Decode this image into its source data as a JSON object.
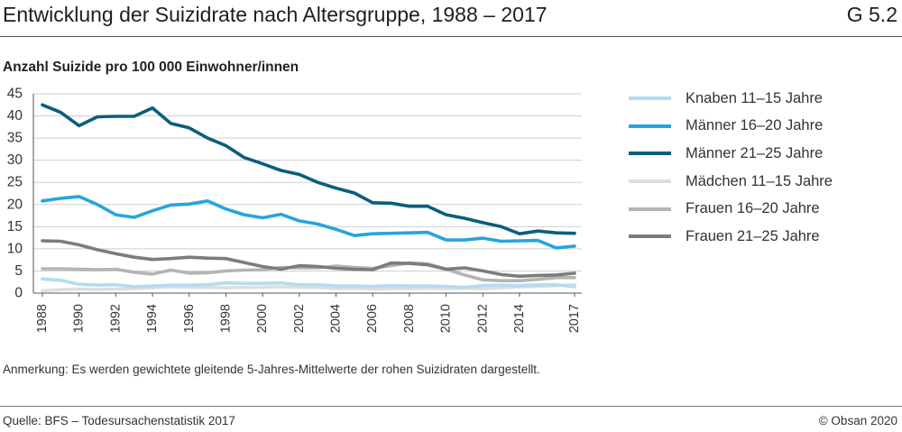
{
  "header": {
    "figure_id": "G 5.2"
  },
  "chart_data": {
    "type": "line",
    "title": "Entwicklung der Suizidrate nach Altersgruppe, 1988 – 2017",
    "ylabel": "Anzahl Suizide pro 100 000 Einwohner/innen",
    "ylim": [
      0,
      45
    ],
    "y_tick_labels": [
      "0",
      "5",
      "10",
      "15",
      "20",
      "25",
      "30",
      "35",
      "40",
      "45"
    ],
    "x": [
      1988,
      1989,
      1990,
      1991,
      1992,
      1993,
      1994,
      1995,
      1996,
      1997,
      1998,
      1999,
      2000,
      2001,
      2002,
      2003,
      2004,
      2005,
      2006,
      2007,
      2008,
      2009,
      2010,
      2011,
      2012,
      2013,
      2014,
      2015,
      2016,
      2017
    ],
    "x_tick_labels": [
      "1988",
      "1990",
      "1992",
      "1994",
      "1996",
      "1998",
      "2000",
      "2002",
      "2004",
      "2006",
      "2008",
      "2010",
      "2012",
      "2014",
      "2017"
    ],
    "grid": true,
    "legend_position": "right",
    "series": [
      {
        "name": "Knaben 11–15 Jahre",
        "color": "#b5dbf0",
        "values": [
          3.2,
          2.9,
          2.0,
          1.8,
          1.9,
          1.4,
          1.6,
          1.8,
          1.8,
          1.9,
          2.3,
          2.2,
          2.2,
          2.3,
          1.9,
          1.9,
          1.6,
          1.6,
          1.5,
          1.7,
          1.6,
          1.6,
          1.5,
          1.3,
          1.7,
          1.8,
          1.7,
          1.9,
          1.9,
          1.4
        ]
      },
      {
        "name": "Männer 16–20 Jahre",
        "color": "#27a4dc",
        "values": [
          20.8,
          21.4,
          21.8,
          20.0,
          17.7,
          17.1,
          18.6,
          19.9,
          20.1,
          20.8,
          19.0,
          17.7,
          17.0,
          17.8,
          16.3,
          15.6,
          14.4,
          13.0,
          13.4,
          13.5,
          13.6,
          13.7,
          12.0,
          12.0,
          12.4,
          11.7,
          11.8,
          11.9,
          10.2,
          10.6
        ]
      },
      {
        "name": "Männer 21–25 Jahre",
        "color": "#0b5e7c",
        "values": [
          42.5,
          40.8,
          37.8,
          39.8,
          39.9,
          39.9,
          41.8,
          38.3,
          37.3,
          35.0,
          33.3,
          30.6,
          29.2,
          27.7,
          26.8,
          25.0,
          23.7,
          22.6,
          20.4,
          20.3,
          19.6,
          19.6,
          17.7,
          16.9,
          15.9,
          15.0,
          13.4,
          14.0,
          13.6,
          13.5
        ]
      },
      {
        "name": "Mädchen 11–15 Jahre",
        "color": "#dedede",
        "values": [
          0.5,
          0.8,
          0.9,
          0.8,
          0.9,
          1.0,
          1.2,
          1.4,
          1.3,
          1.3,
          1.2,
          1.3,
          1.3,
          1.4,
          1.3,
          1.3,
          1.0,
          1.1,
          0.9,
          1.0,
          1.0,
          1.1,
          1.0,
          1.1,
          1.0,
          1.2,
          1.4,
          1.5,
          1.7,
          1.9
        ]
      },
      {
        "name": "Frauen 16–20 Jahre",
        "color": "#b4b4b4",
        "values": [
          5.5,
          5.5,
          5.4,
          5.3,
          5.4,
          4.7,
          4.3,
          5.2,
          4.5,
          4.6,
          5.0,
          5.2,
          5.3,
          5.8,
          5.7,
          5.7,
          6.1,
          5.8,
          5.6,
          6.2,
          6.8,
          6.6,
          5.4,
          4.1,
          3.0,
          2.8,
          2.8,
          3.1,
          3.5,
          3.5
        ]
      },
      {
        "name": "Frauen 21–25 Jahre",
        "color": "#7c7c7c",
        "values": [
          11.8,
          11.7,
          10.9,
          9.8,
          8.9,
          8.1,
          7.6,
          7.8,
          8.1,
          7.9,
          7.8,
          6.9,
          6.0,
          5.4,
          6.2,
          6.0,
          5.6,
          5.4,
          5.3,
          6.8,
          6.7,
          6.4,
          5.4,
          5.7,
          5.0,
          4.2,
          3.8,
          4.0,
          4.1,
          4.5
        ]
      }
    ]
  },
  "note": "Anmerkung: Es werden gewichtete gleitende 5-Jahres-Mittelwerte der rohen Suizidraten dargestellt.",
  "footer": {
    "source": "Quelle: BFS – Todesursachenstatistik 2017",
    "copyright": "© Obsan 2020"
  }
}
